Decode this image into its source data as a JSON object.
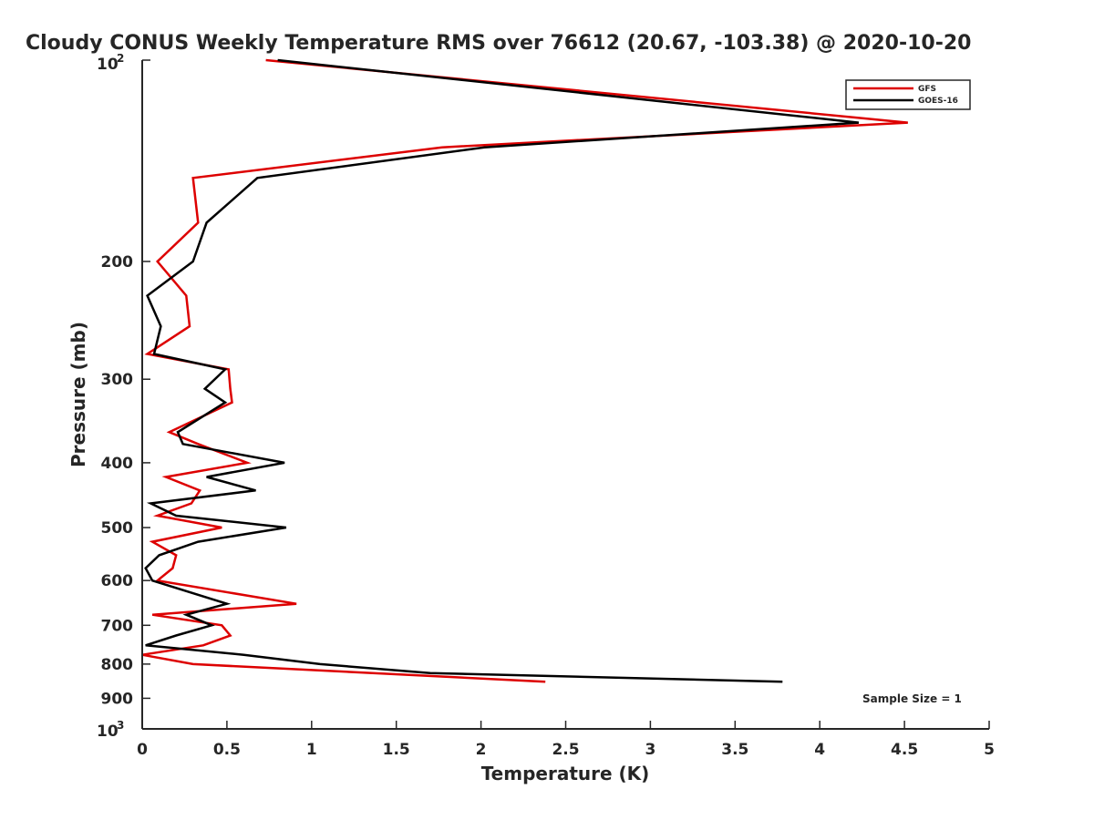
{
  "chart_data": {
    "type": "line",
    "title": "Cloudy CONUS Weekly Temperature RMS over 76612 (20.67, -103.38) @ 2020-10-20",
    "xlabel": "Temperature (K)",
    "ylabel": "Pressure (mb)",
    "xlim": [
      0,
      5
    ],
    "ylim": [
      100,
      1000
    ],
    "yscale": "log",
    "y_reversed": true,
    "x_ticks": [
      "0",
      "0.5",
      "1",
      "1.5",
      "2",
      "2.5",
      "3",
      "3.5",
      "4",
      "4.5",
      "5"
    ],
    "y_ticks": [
      {
        "value": 200,
        "label": "200"
      },
      {
        "value": 300,
        "label": "300"
      },
      {
        "value": 400,
        "label": "400"
      },
      {
        "value": 500,
        "label": "500"
      },
      {
        "value": 600,
        "label": "600"
      },
      {
        "value": 700,
        "label": "700"
      },
      {
        "value": 800,
        "label": "800"
      },
      {
        "value": 900,
        "label": "900"
      }
    ],
    "y_tick_bounds": {
      "top": {
        "base": "10",
        "exp": "2"
      },
      "bottom": {
        "base": "10",
        "exp": "3"
      }
    },
    "legend_position": "top-right",
    "annotation": "Sample Size = 1",
    "series": [
      {
        "name": "GFS",
        "color": "#dd0000",
        "points": [
          [
            0.73,
            100
          ],
          [
            4.52,
            124
          ],
          [
            1.77,
            135
          ],
          [
            0.3,
            150
          ],
          [
            0.33,
            175
          ],
          [
            0.09,
            200
          ],
          [
            0.26,
            225
          ],
          [
            0.28,
            250
          ],
          [
            0.03,
            275
          ],
          [
            0.51,
            290
          ],
          [
            0.52,
            310
          ],
          [
            0.53,
            325
          ],
          [
            0.16,
            360
          ],
          [
            0.33,
            375
          ],
          [
            0.62,
            400
          ],
          [
            0.14,
            420
          ],
          [
            0.34,
            440
          ],
          [
            0.29,
            460
          ],
          [
            0.09,
            480
          ],
          [
            0.47,
            500
          ],
          [
            0.06,
            525
          ],
          [
            0.2,
            550
          ],
          [
            0.18,
            575
          ],
          [
            0.09,
            600
          ],
          [
            0.91,
            650
          ],
          [
            0.06,
            675
          ],
          [
            0.47,
            700
          ],
          [
            0.52,
            725
          ],
          [
            0.36,
            750
          ],
          [
            0.0,
            775
          ],
          [
            0.3,
            800
          ],
          [
            2.38,
            850
          ]
        ]
      },
      {
        "name": "GOES-16",
        "color": "#000000",
        "points": [
          [
            0.8,
            100
          ],
          [
            4.23,
            124
          ],
          [
            2.02,
            135
          ],
          [
            0.68,
            150
          ],
          [
            0.38,
            175
          ],
          [
            0.3,
            200
          ],
          [
            0.03,
            225
          ],
          [
            0.11,
            250
          ],
          [
            0.07,
            275
          ],
          [
            0.49,
            290
          ],
          [
            0.37,
            310
          ],
          [
            0.49,
            325
          ],
          [
            0.21,
            360
          ],
          [
            0.24,
            375
          ],
          [
            0.84,
            400
          ],
          [
            0.38,
            420
          ],
          [
            0.67,
            440
          ],
          [
            0.05,
            460
          ],
          [
            0.2,
            480
          ],
          [
            0.85,
            500
          ],
          [
            0.33,
            525
          ],
          [
            0.1,
            550
          ],
          [
            0.02,
            575
          ],
          [
            0.06,
            600
          ],
          [
            0.5,
            650
          ],
          [
            0.26,
            675
          ],
          [
            0.41,
            700
          ],
          [
            0.2,
            725
          ],
          [
            0.02,
            750
          ],
          [
            0.6,
            775
          ],
          [
            1.05,
            800
          ],
          [
            1.7,
            825
          ],
          [
            3.78,
            850
          ]
        ]
      }
    ]
  }
}
